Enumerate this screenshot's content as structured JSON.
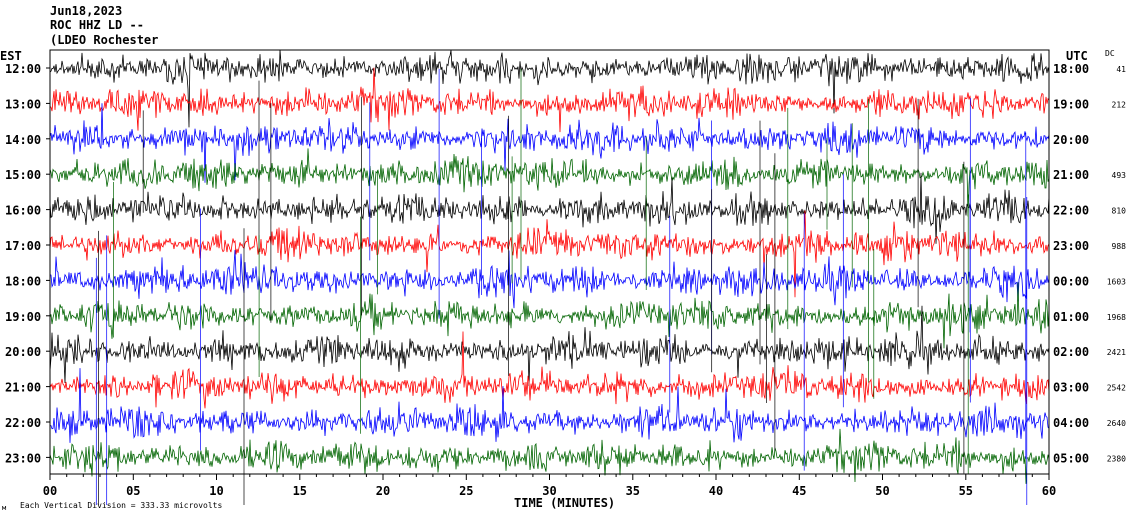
{
  "header": {
    "date": "Jun18,2023",
    "station": "ROC HHZ LD --",
    "network": "(LDEO Rochester"
  },
  "chart_data": {
    "type": "helicorder",
    "left_zone": "EST",
    "right_zone": "UTC",
    "dc_heading": "DC",
    "x_label": "TIME (MINUTES)",
    "x_ticks": [
      "00",
      "05",
      "10",
      "15",
      "20",
      "25",
      "30",
      "35",
      "40",
      "45",
      "50",
      "55",
      "60"
    ],
    "scale_note": "Each Vertical Division = 333.33 microvolts",
    "trace_colors": [
      "#000000",
      "#ff0000",
      "#0000ff",
      "#006400"
    ],
    "rows": [
      {
        "est": "12:00",
        "utc": "18:00",
        "dc": "41"
      },
      {
        "est": "13:00",
        "utc": "19:00",
        "dc": "212"
      },
      {
        "est": "14:00",
        "utc": "20:00",
        "dc": ""
      },
      {
        "est": "15:00",
        "utc": "21:00",
        "dc": "493"
      },
      {
        "est": "16:00",
        "utc": "22:00",
        "dc": "810"
      },
      {
        "est": "17:00",
        "utc": "23:00",
        "dc": "988"
      },
      {
        "est": "18:00",
        "utc": "00:00",
        "dc": "1603"
      },
      {
        "est": "19:00",
        "utc": "01:00",
        "dc": "1968"
      },
      {
        "est": "20:00",
        "utc": "02:00",
        "dc": "2421"
      },
      {
        "est": "21:00",
        "utc": "03:00",
        "dc": "2542"
      },
      {
        "est": "22:00",
        "utc": "04:00",
        "dc": "2640"
      },
      {
        "est": "23:00",
        "utc": "05:00",
        "dc": "2380"
      }
    ]
  }
}
